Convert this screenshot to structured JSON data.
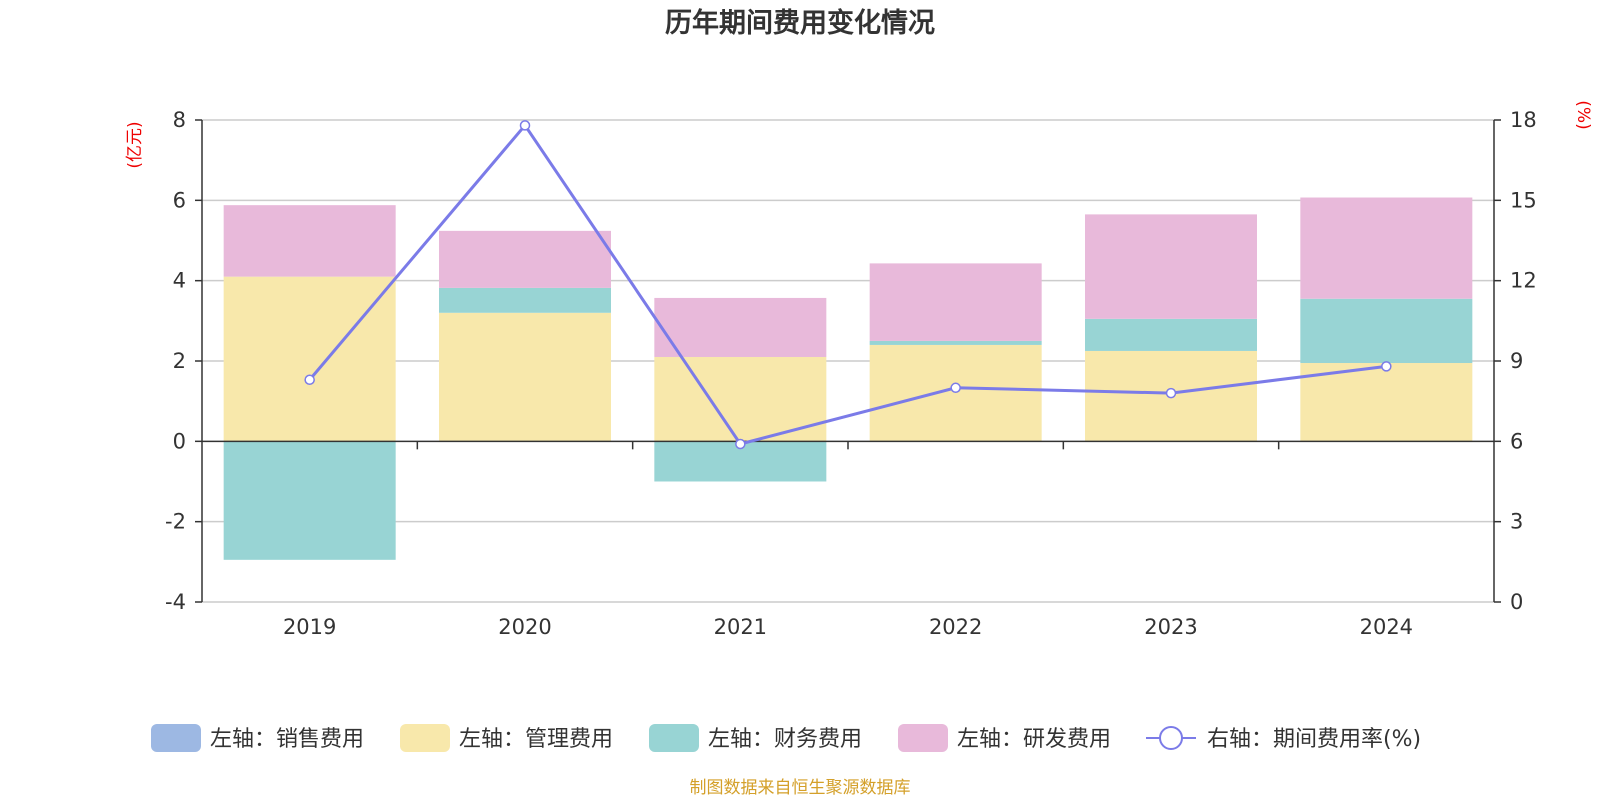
{
  "chart_data": {
    "type": "bar",
    "title": "历年期间费用变化情况",
    "categories": [
      "2019",
      "2020",
      "2021",
      "2022",
      "2023",
      "2024"
    ],
    "y_left": {
      "unit_label": "(亿元)",
      "range": [
        -4,
        8
      ],
      "ticks": [
        -4,
        -2,
        0,
        2,
        4,
        6,
        8
      ]
    },
    "y_right": {
      "unit_label": "(%)",
      "range": [
        0,
        18
      ],
      "ticks": [
        0,
        3,
        6,
        9,
        12,
        15,
        18
      ]
    },
    "stacked": true,
    "grid": true,
    "legend_position": "bottom",
    "series": [
      {
        "name": "左轴：销售费用",
        "axis": "left",
        "type": "bar",
        "color": "#9db8e3",
        "values": [
          0,
          0,
          0,
          0,
          0,
          0
        ]
      },
      {
        "name": "左轴：管理费用",
        "axis": "left",
        "type": "bar",
        "color": "#f8e8ab",
        "values": [
          4.1,
          3.2,
          2.1,
          2.4,
          2.25,
          1.95
        ]
      },
      {
        "name": "左轴：财务费用",
        "axis": "left",
        "type": "bar",
        "color": "#98d4d4",
        "values": [
          -2.95,
          0.62,
          -1.0,
          0.1,
          0.8,
          1.6
        ]
      },
      {
        "name": "左轴：研发费用",
        "axis": "left",
        "type": "bar",
        "color": "#e8b9da",
        "values": [
          1.78,
          1.42,
          1.47,
          1.93,
          2.6,
          2.52
        ]
      },
      {
        "name": "右轴：期间费用率(%)",
        "axis": "right",
        "type": "line",
        "color": "#7b7be8",
        "values": [
          8.3,
          17.8,
          5.9,
          8.0,
          7.8,
          8.8
        ]
      }
    ],
    "source": "制图数据来自恒生聚源数据库"
  }
}
